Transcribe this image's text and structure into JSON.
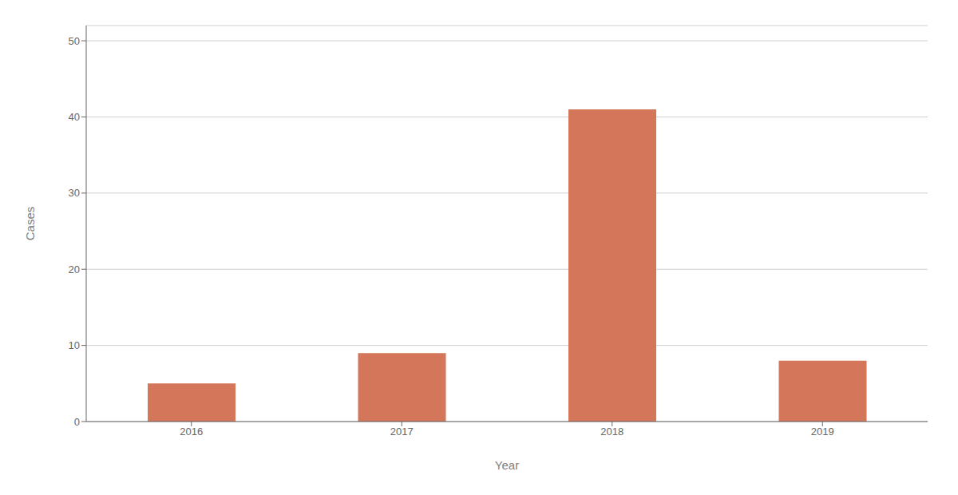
{
  "chart_data": {
    "type": "bar",
    "categories": [
      "2016",
      "2017",
      "2018",
      "2019"
    ],
    "values": [
      5,
      9,
      41,
      8
    ],
    "color": "#d4765a",
    "xlabel": "Year",
    "ylabel": "Cases",
    "ylim": [
      0,
      52
    ],
    "yticks": [
      0,
      10,
      20,
      30,
      40,
      50
    ],
    "grid": true
  }
}
